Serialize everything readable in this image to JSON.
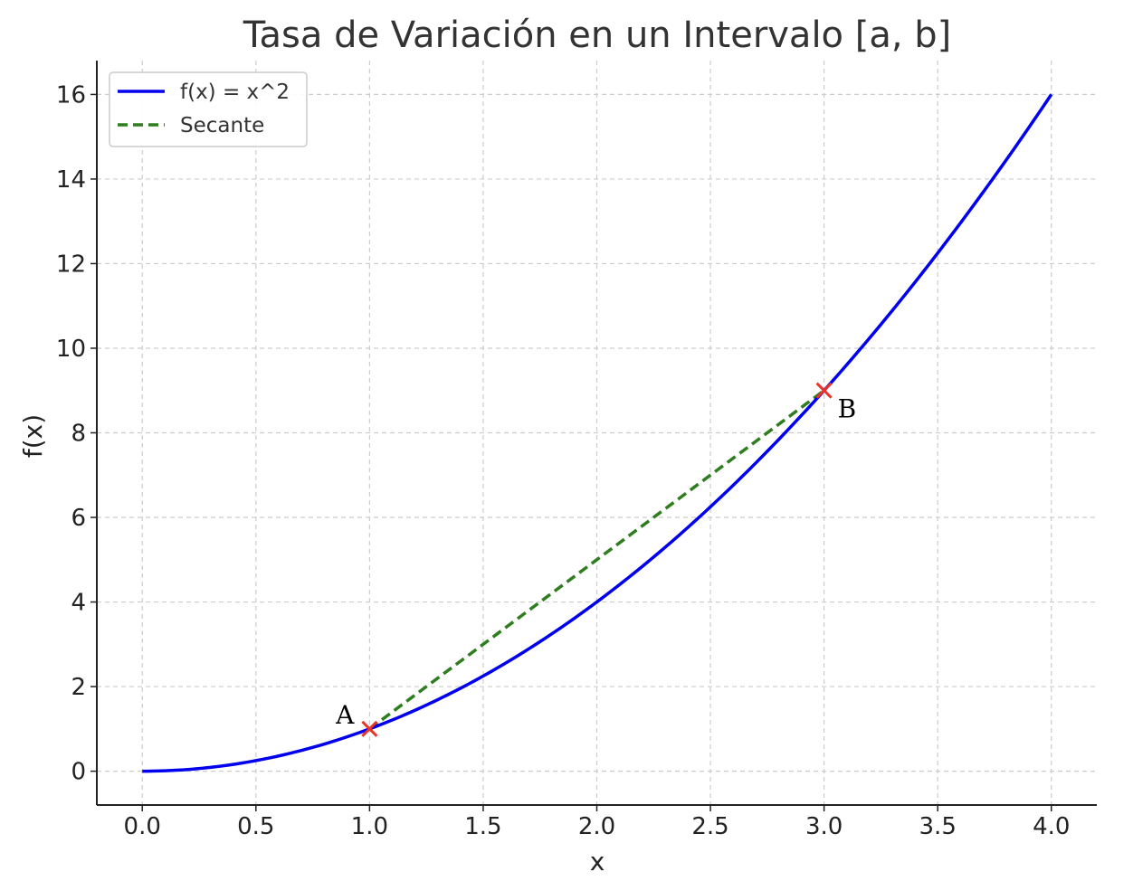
{
  "chart_data": {
    "type": "line",
    "title": "Tasa de Variación en un Intervalo [a, b]",
    "xlabel": "x",
    "ylabel": "f(x)",
    "xlim": [
      -0.2,
      4.2
    ],
    "ylim": [
      -0.8,
      16.8
    ],
    "xticks": [
      0.0,
      0.5,
      1.0,
      1.5,
      2.0,
      2.5,
      3.0,
      3.5,
      4.0
    ],
    "xtick_labels": [
      "0.0",
      "0.5",
      "1.0",
      "1.5",
      "2.0",
      "2.5",
      "3.0",
      "3.5",
      "4.0"
    ],
    "yticks": [
      0,
      2,
      4,
      6,
      8,
      10,
      12,
      14,
      16
    ],
    "ytick_labels": [
      "0",
      "2",
      "4",
      "6",
      "8",
      "10",
      "12",
      "14",
      "16"
    ],
    "grid": true,
    "legend_position": "top-left",
    "series": [
      {
        "name": "f(x) = x^2",
        "style": "solid",
        "color": "#0000ee",
        "x": [
          0.0,
          0.25,
          0.5,
          0.75,
          1.0,
          1.25,
          1.5,
          1.75,
          2.0,
          2.25,
          2.5,
          2.75,
          3.0,
          3.25,
          3.5,
          3.75,
          4.0
        ],
        "y": [
          0.0,
          0.0625,
          0.25,
          0.5625,
          1.0,
          1.5625,
          2.25,
          3.0625,
          4.0,
          5.0625,
          6.25,
          7.5625,
          9.0,
          10.5625,
          12.25,
          14.0625,
          16.0
        ]
      },
      {
        "name": "Secante",
        "style": "dashed",
        "color": "#2e7d1f",
        "x": [
          1.0,
          3.0
        ],
        "y": [
          1.0,
          9.0
        ]
      }
    ],
    "points": [
      {
        "label": "A",
        "x": 1.0,
        "y": 1.0,
        "marker_color": "#e8352a"
      },
      {
        "label": "B",
        "x": 3.0,
        "y": 9.0,
        "marker_color": "#e8352a"
      }
    ]
  }
}
